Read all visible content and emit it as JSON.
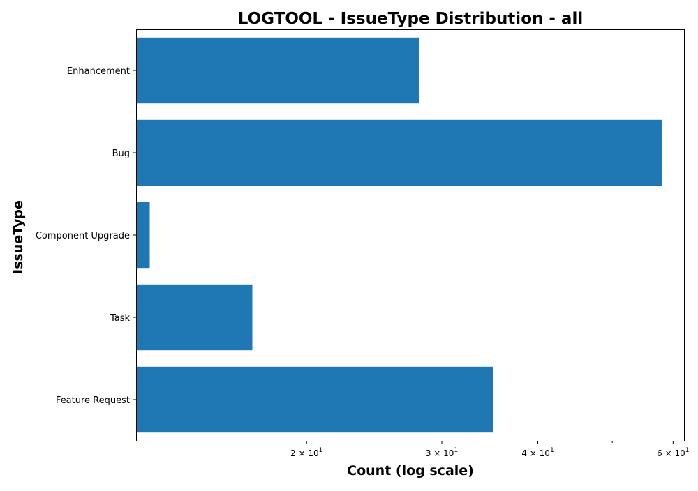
{
  "chart_data": {
    "type": "bar",
    "orientation": "horizontal",
    "title": "LOGTOOL - IssueType Distribution - all",
    "xlabel": "Count (log scale)",
    "ylabel": "IssueType",
    "x_scale": "log",
    "xlim": [
      12,
      62
    ],
    "categories": [
      "Enhancement",
      "Bug",
      "Component Upgrade",
      "Task",
      "Feature Request"
    ],
    "values": [
      28,
      58,
      12.5,
      17,
      35
    ],
    "bar_color": "#1f77b4",
    "x_ticks": [
      {
        "value": 20,
        "label": "2 × 10",
        "exp": "1"
      },
      {
        "value": 30,
        "label": "3 × 10",
        "exp": "1"
      },
      {
        "value": 40,
        "label": "4 × 10",
        "exp": "1"
      },
      {
        "value": 60,
        "label": "6 × 10",
        "exp": "1"
      }
    ],
    "x_minor_ticks": [
      50
    ],
    "grid": false,
    "legend": "none"
  }
}
